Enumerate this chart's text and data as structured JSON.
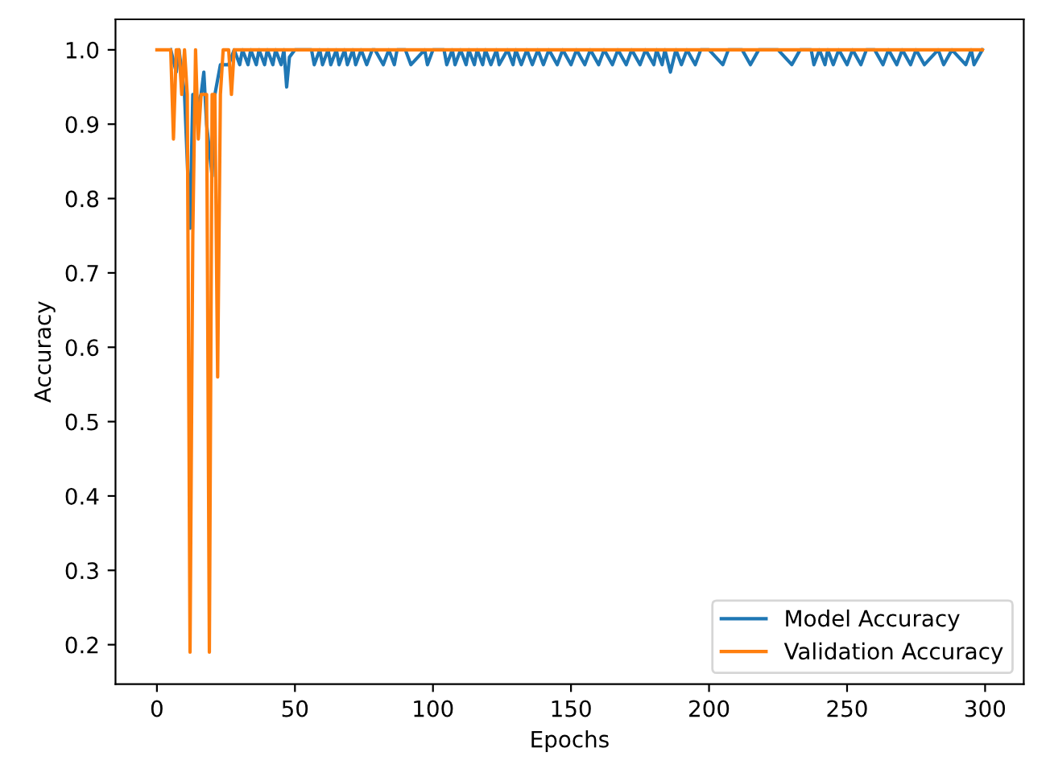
{
  "chart_data": {
    "type": "line",
    "xlabel": "Epochs",
    "ylabel": "Accuracy",
    "xlim": [
      -15,
      314
    ],
    "ylim": [
      0.147,
      1.041
    ],
    "xticks": [
      0,
      50,
      100,
      150,
      200,
      250,
      300
    ],
    "yticks": [
      {
        "value": 0.2,
        "label": "0.2"
      },
      {
        "value": 0.3,
        "label": "0.3"
      },
      {
        "value": 0.4,
        "label": "0.4"
      },
      {
        "value": 0.5,
        "label": "0.5"
      },
      {
        "value": 0.6,
        "label": "0.6"
      },
      {
        "value": 0.7,
        "label": "0.7"
      },
      {
        "value": 0.8,
        "label": "0.8"
      },
      {
        "value": 0.9,
        "label": "0.9"
      },
      {
        "value": 1.0,
        "label": "1.0"
      }
    ],
    "grid": false,
    "legend": "bottom right",
    "series": [
      {
        "name": "Model Accuracy",
        "color": "#1f77b4",
        "x": [
          5,
          7,
          8,
          10,
          12,
          13,
          15,
          16,
          17,
          18,
          20,
          21,
          23,
          26,
          27,
          28,
          30,
          31,
          33,
          34,
          36,
          37,
          39,
          40,
          42,
          43,
          45,
          46,
          47,
          48,
          50,
          52,
          56,
          57,
          59,
          60,
          62,
          63,
          65,
          66,
          68,
          69,
          71,
          72,
          74,
          76,
          78,
          79,
          82,
          84,
          86,
          87,
          90,
          92,
          97,
          98,
          100,
          104,
          105,
          107,
          108,
          110,
          112,
          113,
          115,
          116,
          118,
          119,
          121,
          123,
          124,
          127,
          129,
          130,
          132,
          134,
          136,
          138,
          140,
          142,
          145,
          147,
          150,
          152,
          155,
          157,
          160,
          162,
          165,
          167,
          170,
          172,
          175,
          177,
          180,
          181,
          183,
          184,
          186,
          188,
          190,
          192,
          195,
          197,
          200,
          205,
          207,
          212,
          215,
          218,
          225,
          230,
          233,
          237,
          238,
          240,
          242,
          243,
          245,
          247,
          250,
          252,
          255,
          257,
          260,
          263,
          265,
          268,
          270,
          273,
          275,
          278,
          283,
          285,
          288,
          293,
          295,
          296,
          299
        ],
        "values": [
          1.0,
          0.97,
          1.0,
          0.94,
          0.76,
          0.94,
          0.93,
          0.94,
          0.97,
          0.9,
          0.83,
          0.94,
          0.98,
          0.98,
          0.99,
          1.0,
          0.98,
          1.0,
          0.98,
          1.0,
          0.98,
          1.0,
          0.98,
          1.0,
          0.98,
          1.0,
          0.98,
          1.0,
          0.95,
          0.99,
          1.0,
          1.0,
          1.0,
          0.98,
          1.0,
          0.98,
          1.0,
          0.98,
          1.0,
          0.98,
          1.0,
          0.98,
          1.0,
          0.98,
          1.0,
          0.98,
          1.0,
          1.0,
          0.98,
          1.0,
          0.98,
          1.0,
          1.0,
          0.98,
          1.0,
          0.98,
          1.0,
          1.0,
          0.98,
          1.0,
          0.98,
          1.0,
          0.98,
          1.0,
          0.98,
          1.0,
          0.98,
          1.0,
          0.98,
          1.0,
          0.98,
          1.0,
          0.98,
          1.0,
          0.98,
          1.0,
          0.98,
          1.0,
          0.98,
          1.0,
          0.98,
          1.0,
          0.98,
          1.0,
          0.98,
          1.0,
          0.98,
          1.0,
          0.98,
          1.0,
          0.98,
          1.0,
          0.98,
          1.0,
          0.98,
          1.0,
          0.98,
          1.0,
          0.97,
          1.0,
          0.98,
          1.0,
          0.98,
          1.0,
          1.0,
          0.98,
          1.0,
          1.0,
          0.98,
          1.0,
          1.0,
          0.98,
          1.0,
          1.0,
          0.98,
          1.0,
          0.98,
          1.0,
          0.98,
          1.0,
          0.98,
          1.0,
          0.98,
          1.0,
          1.0,
          0.98,
          1.0,
          0.98,
          1.0,
          0.98,
          1.0,
          0.98,
          1.0,
          0.98,
          1.0,
          0.98,
          1.0,
          0.98,
          1.0
        ]
      },
      {
        "name": "Validation Accuracy",
        "color": "#ff7f0e",
        "x": [
          0,
          5,
          6,
          7,
          8,
          9,
          10,
          11,
          12,
          13,
          14,
          15,
          16,
          17,
          18,
          19,
          20,
          21,
          22,
          23,
          24,
          26,
          27,
          28,
          299
        ],
        "values": [
          1.0,
          1.0,
          0.88,
          1.0,
          1.0,
          0.94,
          1.0,
          0.94,
          0.19,
          0.75,
          1.0,
          0.88,
          0.94,
          0.94,
          0.94,
          0.19,
          0.94,
          0.94,
          0.56,
          0.94,
          1.0,
          1.0,
          0.94,
          1.0,
          1.0
        ]
      }
    ]
  }
}
